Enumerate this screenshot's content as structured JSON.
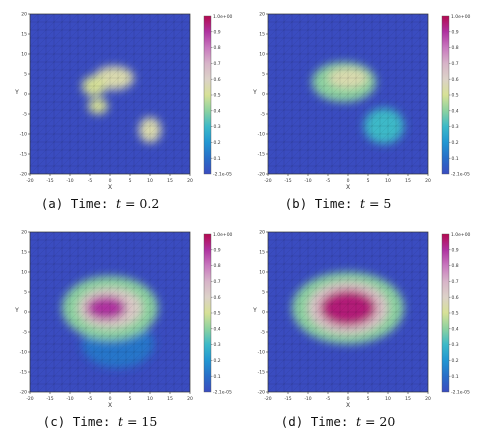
{
  "chart_data": [
    {
      "type": "heatmap",
      "panel_label": "(a)",
      "caption_prefix": "Time:",
      "time_symbol": "t",
      "time_value": "0.2",
      "xlabel": "X",
      "ylabel": "Y",
      "xlim": [
        -20,
        20
      ],
      "ylim": [
        -20,
        20
      ],
      "x_ticks": [
        "-20",
        "-15",
        "-10",
        "-5",
        "0",
        "5",
        "10",
        "15",
        "20"
      ],
      "y_ticks": [
        "20",
        "15",
        "10",
        "5",
        "0",
        "-5",
        "-10",
        "-15",
        "-20"
      ],
      "colorbar": {
        "min_label": "-2.1e-05",
        "max_label": "1.0e+00",
        "ticks": [
          "0.9",
          "0.8",
          "0.7",
          "0.6",
          "0.5",
          "0.4",
          "0.3",
          "0.2",
          "0.1"
        ]
      },
      "blobs": [
        {
          "cx": 1,
          "cy": 4,
          "rx": 5,
          "ry": 3,
          "level": 0.55
        },
        {
          "cx": -4,
          "cy": 2,
          "rx": 3,
          "ry": 2.5,
          "level": 0.5
        },
        {
          "cx": -3,
          "cy": -3,
          "rx": 2.5,
          "ry": 2,
          "level": 0.5
        },
        {
          "cx": 10,
          "cy": -9,
          "rx": 2.8,
          "ry": 3.2,
          "level": 0.55
        }
      ]
    },
    {
      "type": "heatmap",
      "panel_label": "(b)",
      "caption_prefix": "Time:",
      "time_symbol": "t",
      "time_value": "5",
      "xlabel": "X",
      "ylabel": "Y",
      "xlim": [
        -20,
        20
      ],
      "ylim": [
        -20,
        20
      ],
      "x_ticks": [
        "-20",
        "-15",
        "-10",
        "-5",
        "0",
        "5",
        "10",
        "15",
        "20"
      ],
      "y_ticks": [
        "20",
        "15",
        "10",
        "5",
        "0",
        "-5",
        "-10",
        "-15",
        "-20"
      ],
      "colorbar": {
        "min_label": "-2.1e-05",
        "max_label": "1.0e+00",
        "ticks": [
          "0.9",
          "0.8",
          "0.7",
          "0.6",
          "0.5",
          "0.4",
          "0.3",
          "0.2",
          "0.1"
        ]
      },
      "blobs": [
        {
          "cx": -1,
          "cy": 3,
          "rx": 8,
          "ry": 5,
          "level": 0.4
        },
        {
          "cx": 0,
          "cy": 4,
          "rx": 5,
          "ry": 2.5,
          "level": 0.55
        },
        {
          "cx": 9,
          "cy": -8,
          "rx": 5,
          "ry": 4.5,
          "level": 0.3
        }
      ]
    },
    {
      "type": "heatmap",
      "panel_label": "(c)",
      "caption_prefix": "Time:",
      "time_symbol": "t",
      "time_value": "15",
      "xlabel": "X",
      "ylabel": "Y",
      "xlim": [
        -20,
        20
      ],
      "ylim": [
        -20,
        20
      ],
      "x_ticks": [
        "-20",
        "-15",
        "-10",
        "-5",
        "0",
        "5",
        "10",
        "15",
        "20"
      ],
      "y_ticks": [
        "20",
        "15",
        "10",
        "5",
        "0",
        "-5",
        "-10",
        "-15",
        "-20"
      ],
      "colorbar": {
        "min_label": "-2.1e-05",
        "max_label": "1.0e+00",
        "ticks": [
          "0.9",
          "0.8",
          "0.7",
          "0.6",
          "0.5",
          "0.4",
          "0.3",
          "0.2",
          "0.1"
        ]
      },
      "blobs": [
        {
          "cx": 2,
          "cy": -8,
          "rx": 9,
          "ry": 6,
          "level": 0.12
        },
        {
          "cx": 0,
          "cy": 1,
          "rx": 12,
          "ry": 8,
          "level": 0.4
        },
        {
          "cx": 0,
          "cy": 1,
          "rx": 8,
          "ry": 5,
          "level": 0.62
        },
        {
          "cx": -1,
          "cy": 1,
          "rx": 5,
          "ry": 3,
          "level": 0.9
        }
      ]
    },
    {
      "type": "heatmap",
      "panel_label": "(d)",
      "caption_prefix": "Time:",
      "time_symbol": "t",
      "time_value": "20",
      "xlabel": "X",
      "ylabel": "Y",
      "xlim": [
        -20,
        20
      ],
      "ylim": [
        -20,
        20
      ],
      "x_ticks": [
        "-20",
        "-15",
        "-10",
        "-5",
        "0",
        "5",
        "10",
        "15",
        "20"
      ],
      "y_ticks": [
        "20",
        "15",
        "10",
        "5",
        "0",
        "-5",
        "-10",
        "-15",
        "-20"
      ],
      "colorbar": {
        "min_label": "-2.1e-05",
        "max_label": "1.0e+00",
        "ticks": [
          "0.9",
          "0.8",
          "0.7",
          "0.6",
          "0.5",
          "0.4",
          "0.3",
          "0.2",
          "0.1"
        ]
      },
      "blobs": [
        {
          "cx": 0,
          "cy": 1,
          "rx": 14,
          "ry": 9,
          "level": 0.4
        },
        {
          "cx": 0,
          "cy": 1,
          "rx": 10,
          "ry": 6.5,
          "level": 0.65
        },
        {
          "cx": 0,
          "cy": 1,
          "rx": 7,
          "ry": 4.5,
          "level": 0.95
        }
      ]
    }
  ]
}
